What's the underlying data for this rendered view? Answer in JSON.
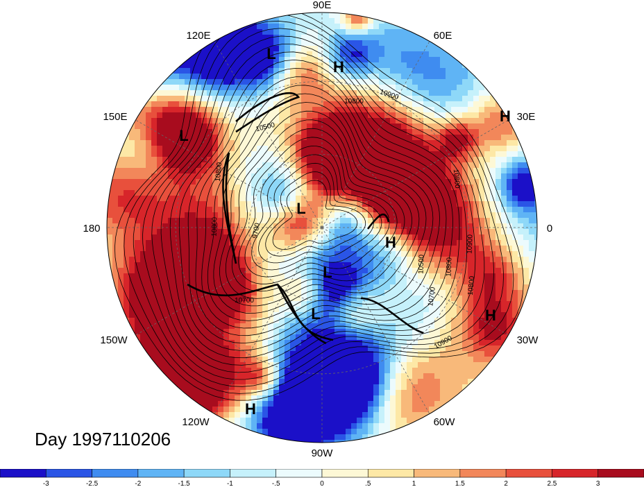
{
  "map": {
    "projection": "north polar stereographic",
    "longitude_labels": [
      "90E",
      "60E",
      "30E",
      "0",
      "30W",
      "60W",
      "90W",
      "120W",
      "150W",
      "180",
      "150E",
      "120E"
    ],
    "highs_lows": [
      "L",
      "H",
      "H",
      "L",
      "L",
      "H",
      "L",
      "L",
      "H",
      "H"
    ],
    "contour_labels": [
      "10900",
      "10800",
      "10500",
      "10800",
      "10800",
      "9700",
      "10800",
      "10700",
      "10500",
      "10800",
      "10700",
      "10900",
      "10900",
      "10800"
    ],
    "contour_color": "#000000",
    "grid_style": "dashed gray"
  },
  "day_label": "Day 1997110206",
  "colorbar": {
    "colors": [
      "#1b10c8",
      "#2a55e6",
      "#3f8cf0",
      "#5fb4f5",
      "#8ed8f8",
      "#c6f1fb",
      "#ecfbfd",
      "#fdf8d6",
      "#fde8a6",
      "#f8b97a",
      "#f2875a",
      "#e8503c",
      "#d7252a",
      "#a80c1e"
    ],
    "ticks": [
      "-3",
      "-2.5",
      "-2",
      "-1.5",
      "-1",
      "-.5",
      "0",
      ".5",
      "1",
      "1.5",
      "2",
      "2.5",
      "3"
    ]
  }
}
